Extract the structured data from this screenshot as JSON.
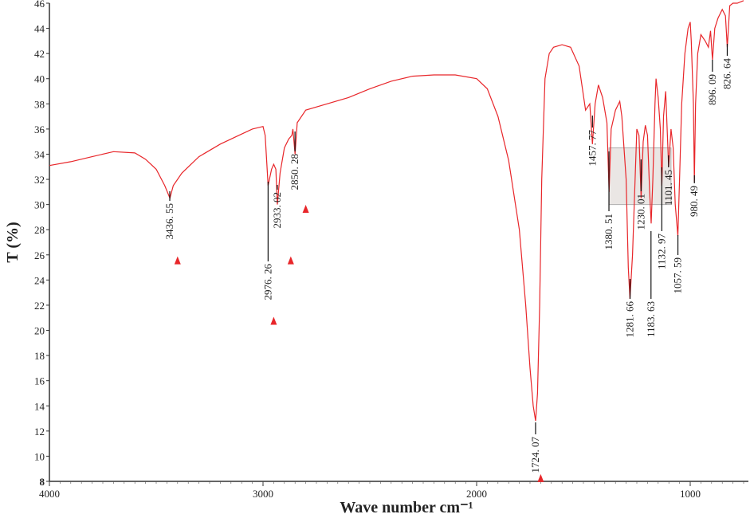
{
  "chart_data": {
    "type": "line",
    "x_label": "Wave number cm⁻¹",
    "y_label": "T (%)",
    "xlim": [
      4000,
      750
    ],
    "ylim": [
      8,
      46
    ],
    "xticks": [
      4000,
      3000,
      2000,
      1000
    ],
    "yticks": [
      8,
      10,
      12,
      14,
      16,
      18,
      20,
      22,
      24,
      26,
      28,
      30,
      32,
      34,
      36,
      38,
      40,
      42,
      44,
      46
    ],
    "color": "#e8262a",
    "x": [
      4000,
      3900,
      3800,
      3700,
      3600,
      3550,
      3500,
      3460,
      3436,
      3420,
      3380,
      3300,
      3200,
      3100,
      3050,
      3000,
      2990,
      2976,
      2960,
      2950,
      2940,
      2933,
      2920,
      2900,
      2880,
      2865,
      2860,
      2850,
      2840,
      2800,
      2700,
      2600,
      2500,
      2400,
      2300,
      2200,
      2100,
      2000,
      1950,
      1900,
      1850,
      1800,
      1770,
      1750,
      1735,
      1724,
      1715,
      1705,
      1695,
      1680,
      1660,
      1640,
      1600,
      1560,
      1520,
      1490,
      1470,
      1458,
      1445,
      1430,
      1410,
      1390,
      1380,
      1370,
      1350,
      1330,
      1320,
      1300,
      1290,
      1282,
      1270,
      1260,
      1250,
      1240,
      1230,
      1220,
      1210,
      1200,
      1190,
      1183,
      1175,
      1165,
      1160,
      1150,
      1140,
      1133,
      1125,
      1115,
      1101,
      1090,
      1080,
      1070,
      1058,
      1050,
      1040,
      1025,
      1010,
      1000,
      995,
      985,
      980.5,
      975,
      965,
      950,
      930,
      915,
      905,
      896,
      885,
      870,
      850,
      835,
      826.6,
      815,
      800,
      780,
      750
    ],
    "values": [
      33.1,
      33.4,
      33.8,
      34.2,
      34.1,
      33.6,
      32.8,
      31.5,
      30.5,
      31.5,
      32.5,
      33.8,
      34.8,
      35.6,
      36.0,
      36.2,
      35.5,
      31.5,
      32.8,
      33.2,
      32.8,
      30.0,
      32.5,
      34.5,
      35.2,
      35.5,
      36.0,
      34.0,
      36.5,
      37.5,
      38.0,
      38.5,
      39.2,
      39.8,
      40.2,
      40.3,
      40.3,
      40.0,
      39.2,
      37.0,
      33.5,
      28.0,
      22.0,
      17.0,
      14.0,
      12.8,
      15.0,
      22.0,
      32.0,
      40.0,
      42.0,
      42.5,
      42.7,
      42.5,
      41.0,
      37.5,
      38.0,
      34.8,
      38.0,
      39.5,
      38.5,
      36.5,
      31.0,
      36.0,
      37.5,
      38.2,
      37.0,
      32.0,
      25.0,
      22.5,
      26.0,
      31.0,
      36.0,
      35.5,
      30.5,
      35.0,
      36.3,
      35.5,
      31.0,
      28.5,
      32.0,
      38.0,
      40.0,
      38.5,
      36.0,
      31.5,
      37.0,
      39.0,
      33.0,
      36.0,
      34.5,
      30.0,
      27.5,
      32.0,
      38.0,
      42.0,
      44.0,
      44.5,
      43.0,
      38.0,
      31.8,
      38.0,
      42.0,
      43.5,
      43.0,
      42.5,
      43.8,
      41.5,
      44.0,
      44.8,
      45.5,
      45.0,
      42.5,
      45.8,
      46.0,
      46.0,
      46.2
    ],
    "annotations": [
      {
        "x": 3436.55,
        "label": "3436. 55"
      },
      {
        "x": 2976.26,
        "label": "2976. 26"
      },
      {
        "x": 2933.02,
        "label": "2933. 02"
      },
      {
        "x": 2850.28,
        "label": "2850. 28"
      },
      {
        "x": 1724.07,
        "label": "1724. 07"
      },
      {
        "x": 1457.77,
        "label": "1457. 77"
      },
      {
        "x": 1380.51,
        "label": "1380. 51"
      },
      {
        "x": 1281.66,
        "label": "1281. 66"
      },
      {
        "x": 1230.01,
        "label": "1230. 01"
      },
      {
        "x": 1183.63,
        "label": "1183. 63"
      },
      {
        "x": 1132.97,
        "label": "1132. 97"
      },
      {
        "x": 1101.45,
        "label": "1101. 45"
      },
      {
        "x": 1057.59,
        "label": "1057. 59"
      },
      {
        "x": 980.49,
        "label": "980. 49"
      },
      {
        "x": 896.09,
        "label": "896. 09"
      },
      {
        "x": 826.64,
        "label": "826. 64"
      }
    ],
    "markers": {
      "x": [
        3400,
        2950,
        2870,
        2800,
        1700
      ],
      "y": [
        25.5,
        20.7,
        25.5,
        29.6,
        8.2
      ],
      "color": "#e8262a"
    },
    "highlight": {
      "x": [
        1380,
        1090
      ],
      "y": [
        30,
        34.5
      ]
    }
  }
}
